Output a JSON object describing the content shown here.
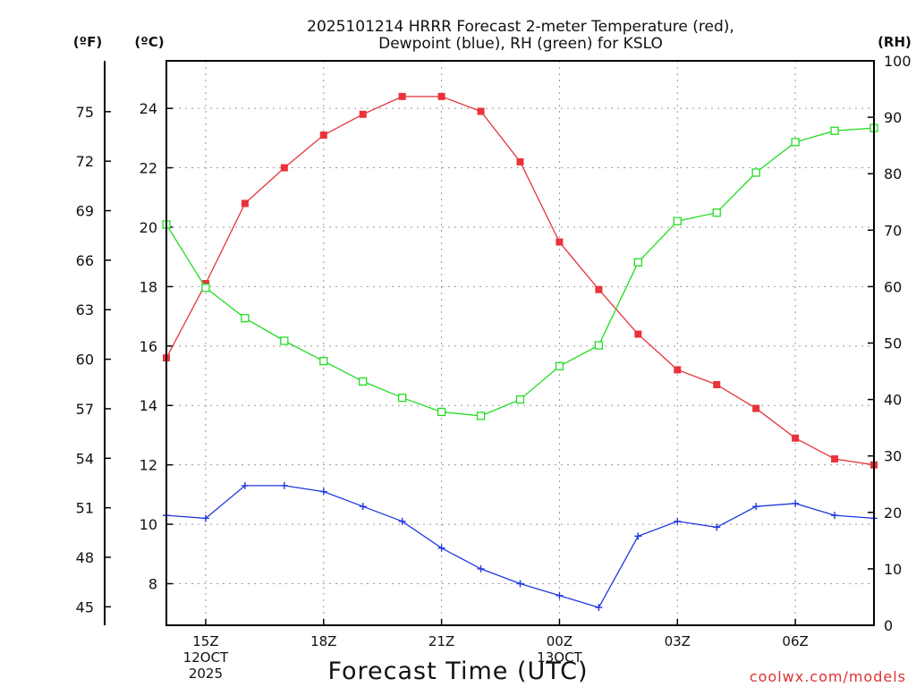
{
  "chart_data": {
    "type": "line",
    "title": "2025101214 HRRR Forecast 2-meter Temperature (red),",
    "subtitle": "Dewpoint (blue), RH (green) for KSLO",
    "xlabel": "Forecast Time (UTC)",
    "credit": "coolwx.com/models",
    "units": {
      "fahrenheit": "(ºF)",
      "celsius": "(ºC)",
      "rh": "(RH)"
    },
    "x_hours": [
      14,
      15,
      16,
      17,
      18,
      19,
      20,
      21,
      22,
      23,
      24,
      25,
      26,
      27,
      28,
      29,
      30,
      31,
      32
    ],
    "xlim": [
      14,
      32
    ],
    "x_ticks": [
      {
        "hour": 15,
        "lines": [
          "15Z",
          "12OCT",
          "2025"
        ]
      },
      {
        "hour": 18,
        "lines": [
          "18Z"
        ]
      },
      {
        "hour": 21,
        "lines": [
          "21Z"
        ]
      },
      {
        "hour": 24,
        "lines": [
          "00Z",
          "13OCT"
        ]
      },
      {
        "hour": 27,
        "lines": [
          "03Z"
        ]
      },
      {
        "hour": 30,
        "lines": [
          "06Z"
        ]
      }
    ],
    "celsius_axis": {
      "ylim": [
        6.6,
        25.6
      ],
      "ticks": [
        8,
        10,
        12,
        14,
        16,
        18,
        20,
        22,
        24
      ]
    },
    "fahrenheit_ticks": [
      45,
      48,
      51,
      54,
      57,
      60,
      63,
      66,
      69,
      72,
      75
    ],
    "rh_axis": {
      "ylim": [
        0,
        100
      ],
      "ticks": [
        0,
        10,
        20,
        30,
        40,
        50,
        60,
        70,
        80,
        90,
        100
      ]
    },
    "series": [
      {
        "name": "Temperature",
        "axis": "celsius",
        "color": "#e8333a",
        "marker": "filled-square",
        "values": [
          15.6,
          18.1,
          20.8,
          22.0,
          23.1,
          23.8,
          24.4,
          24.4,
          23.9,
          22.2,
          19.5,
          17.9,
          16.4,
          15.2,
          14.7,
          13.9,
          12.9,
          12.2,
          12.0
        ]
      },
      {
        "name": "Dewpoint",
        "axis": "celsius",
        "color": "#2038e0",
        "marker": "plus",
        "values": [
          10.3,
          10.2,
          11.3,
          11.3,
          11.1,
          10.6,
          10.1,
          9.2,
          8.5,
          8.0,
          7.6,
          7.2,
          9.6,
          10.1,
          9.9,
          10.6,
          10.7,
          10.3,
          10.2
        ]
      },
      {
        "name": "RH",
        "axis": "rh",
        "color": "#22dd22",
        "marker": "open-square",
        "values": [
          71.0,
          59.8,
          54.4,
          50.4,
          46.8,
          43.2,
          40.3,
          37.8,
          37.1,
          40.0,
          45.9,
          49.6,
          64.3,
          71.6,
          73.1,
          80.2,
          85.6,
          87.6,
          88.1
        ]
      }
    ]
  }
}
